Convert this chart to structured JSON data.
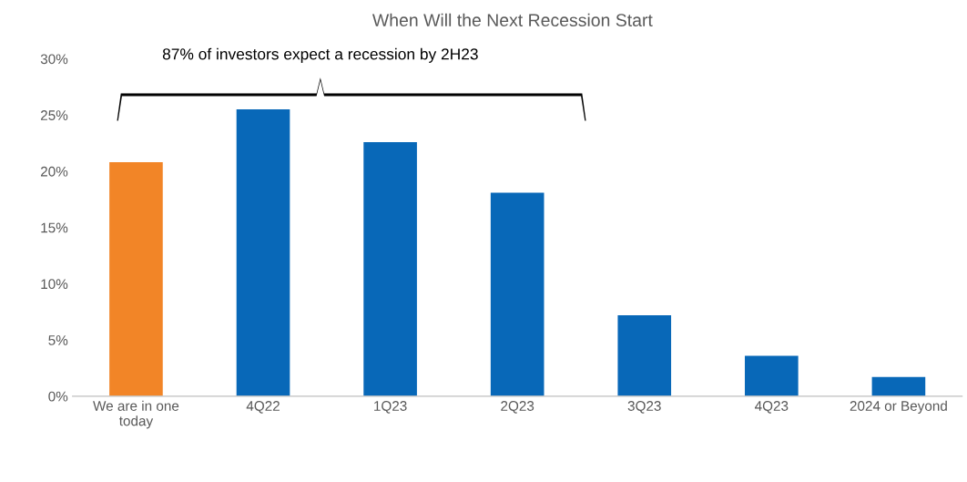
{
  "chart_data": {
    "type": "bar",
    "title": "When Will the Next Recession Start",
    "categories": [
      "We are in one\ntoday",
      "4Q22",
      "1Q23",
      "2Q23",
      "3Q23",
      "4Q23",
      "2024 or Beyond"
    ],
    "values": [
      20.8,
      25.5,
      22.6,
      18.1,
      7.2,
      3.6,
      1.7
    ],
    "colors": [
      "#f28527",
      "#0868b8",
      "#0868b8",
      "#0868b8",
      "#0868b8",
      "#0868b8",
      "#0868b8"
    ],
    "ylim": [
      0,
      30
    ],
    "yticks": [
      {
        "value": 0,
        "label": "0%"
      },
      {
        "value": 5,
        "label": "5%"
      },
      {
        "value": 10,
        "label": "10%"
      },
      {
        "value": 15,
        "label": "15%"
      },
      {
        "value": 20,
        "label": "20%"
      },
      {
        "value": 25,
        "label": "25%"
      },
      {
        "value": 30,
        "label": "30%"
      }
    ],
    "grid": false,
    "annotations": [
      "87% of investors expect a recession by 2H23"
    ]
  }
}
